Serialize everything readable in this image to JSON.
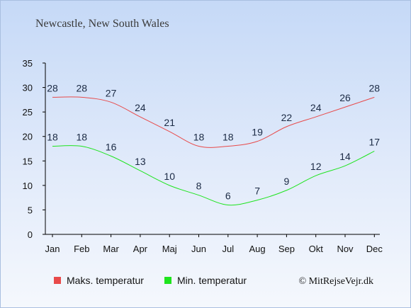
{
  "chart_data": {
    "type": "line",
    "title": "Newcastle, New South Wales",
    "categories": [
      "Jan",
      "Feb",
      "Mar",
      "Apr",
      "Maj",
      "Jun",
      "Jul",
      "Aug",
      "Sep",
      "Okt",
      "Nov",
      "Dec"
    ],
    "series": [
      {
        "name": "Maks. temperatur",
        "color": "#e84a4a",
        "values": [
          28,
          28,
          27,
          24,
          21,
          18,
          18,
          19,
          22,
          24,
          26,
          28
        ]
      },
      {
        "name": "Min. temperatur",
        "color": "#1ee41e",
        "values": [
          18,
          18,
          16,
          13,
          10,
          8,
          6,
          7,
          9,
          12,
          14,
          17
        ]
      }
    ],
    "ylim": [
      0,
      35
    ],
    "yticks": [
      0,
      5,
      10,
      15,
      20,
      25,
      30,
      35
    ],
    "grid": false,
    "legend_position": "bottom-left"
  },
  "credit": "© MitRejseVejr.dk"
}
